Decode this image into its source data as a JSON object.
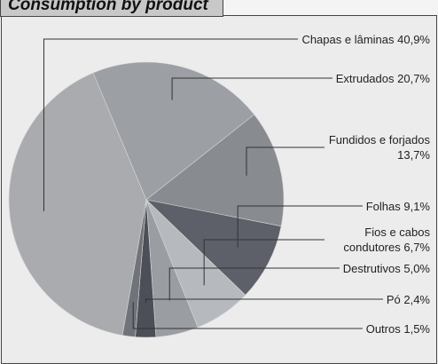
{
  "chart_data": {
    "type": "pie",
    "title": "Consumption by product",
    "categories": [
      "Chapas e lâminas",
      "Extrudados",
      "Fundidos e forjados",
      "Folhas",
      "Fios e cabos condutores",
      "Destrutivos",
      "Pó",
      "Outros"
    ],
    "values": [
      40.9,
      20.7,
      13.7,
      9.1,
      6.7,
      5.0,
      2.4,
      1.5
    ],
    "value_labels": [
      "40,9%",
      "20,7%",
      "13,7%",
      "9,1%",
      "6,7%",
      "5,0%",
      "2,4%",
      "1,5%"
    ],
    "colors": [
      "#a9abae",
      "#9c9fa3",
      "#888b90",
      "#5d6068",
      "#b6b9bd",
      "#9a9da1",
      "#4c4f57",
      "#70737a"
    ]
  }
}
